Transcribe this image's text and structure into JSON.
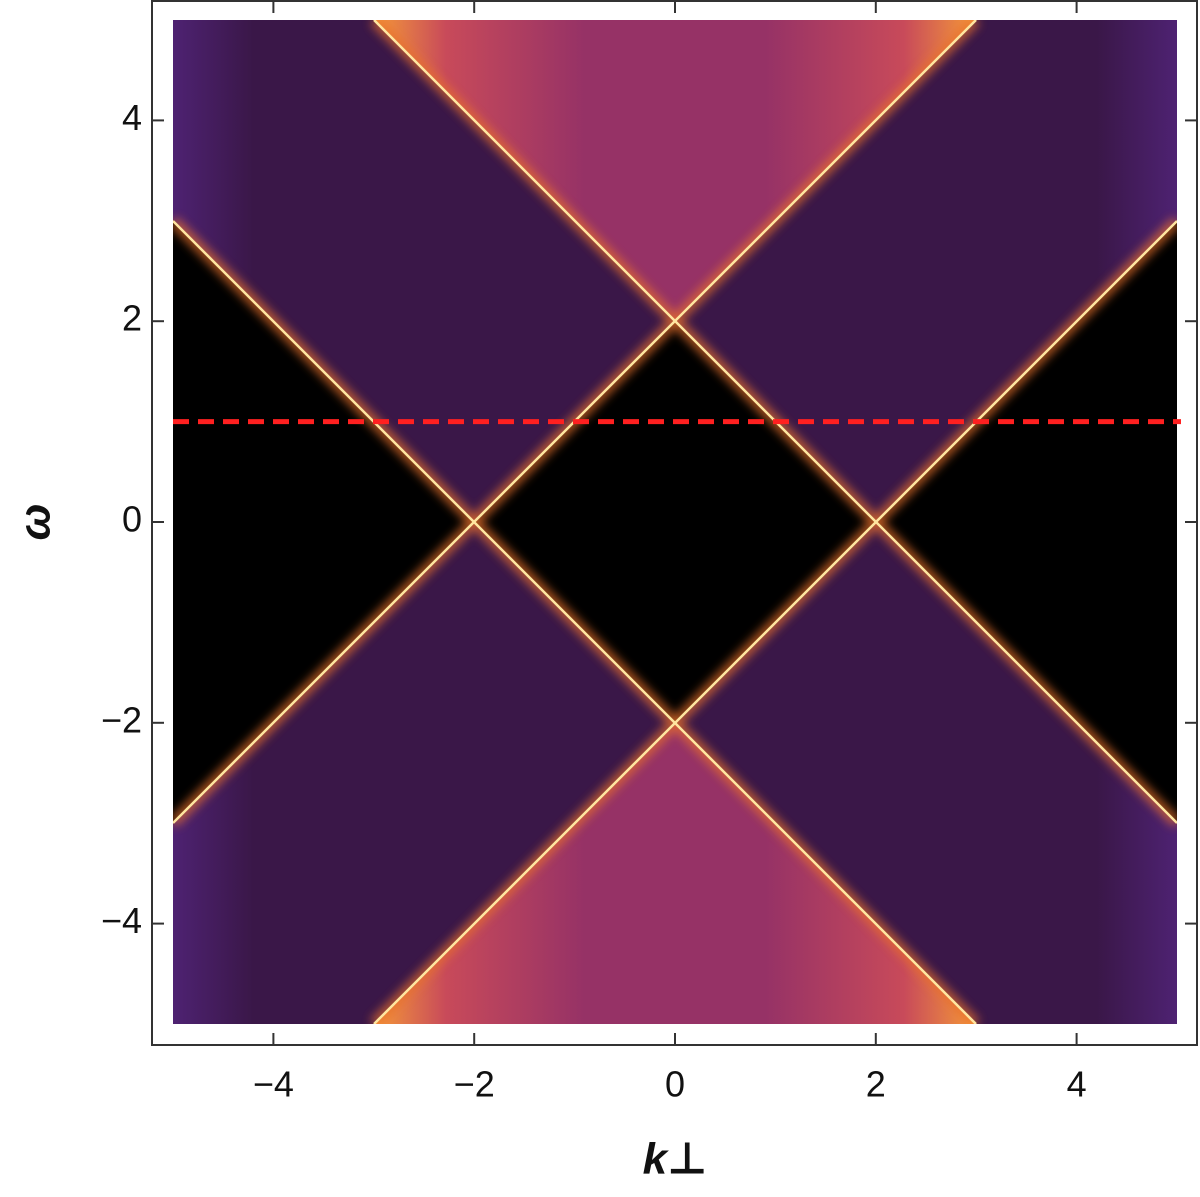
{
  "chart_data": {
    "type": "density",
    "xlabel": "k⊥",
    "ylabel": "ω",
    "xlim": [
      -5,
      5
    ],
    "ylim": [
      -5,
      5
    ],
    "xticks": [
      {
        "value": -4,
        "label": "−4"
      },
      {
        "value": -2,
        "label": "−2"
      },
      0,
      2,
      4
    ],
    "yticks": [
      {
        "value": -4,
        "label": "−4"
      },
      {
        "value": -2,
        "label": "−2"
      },
      0,
      2,
      4
    ],
    "reference_line": {
      "y": 1,
      "color": "#ff2020",
      "style": "dashed"
    }
  }
}
